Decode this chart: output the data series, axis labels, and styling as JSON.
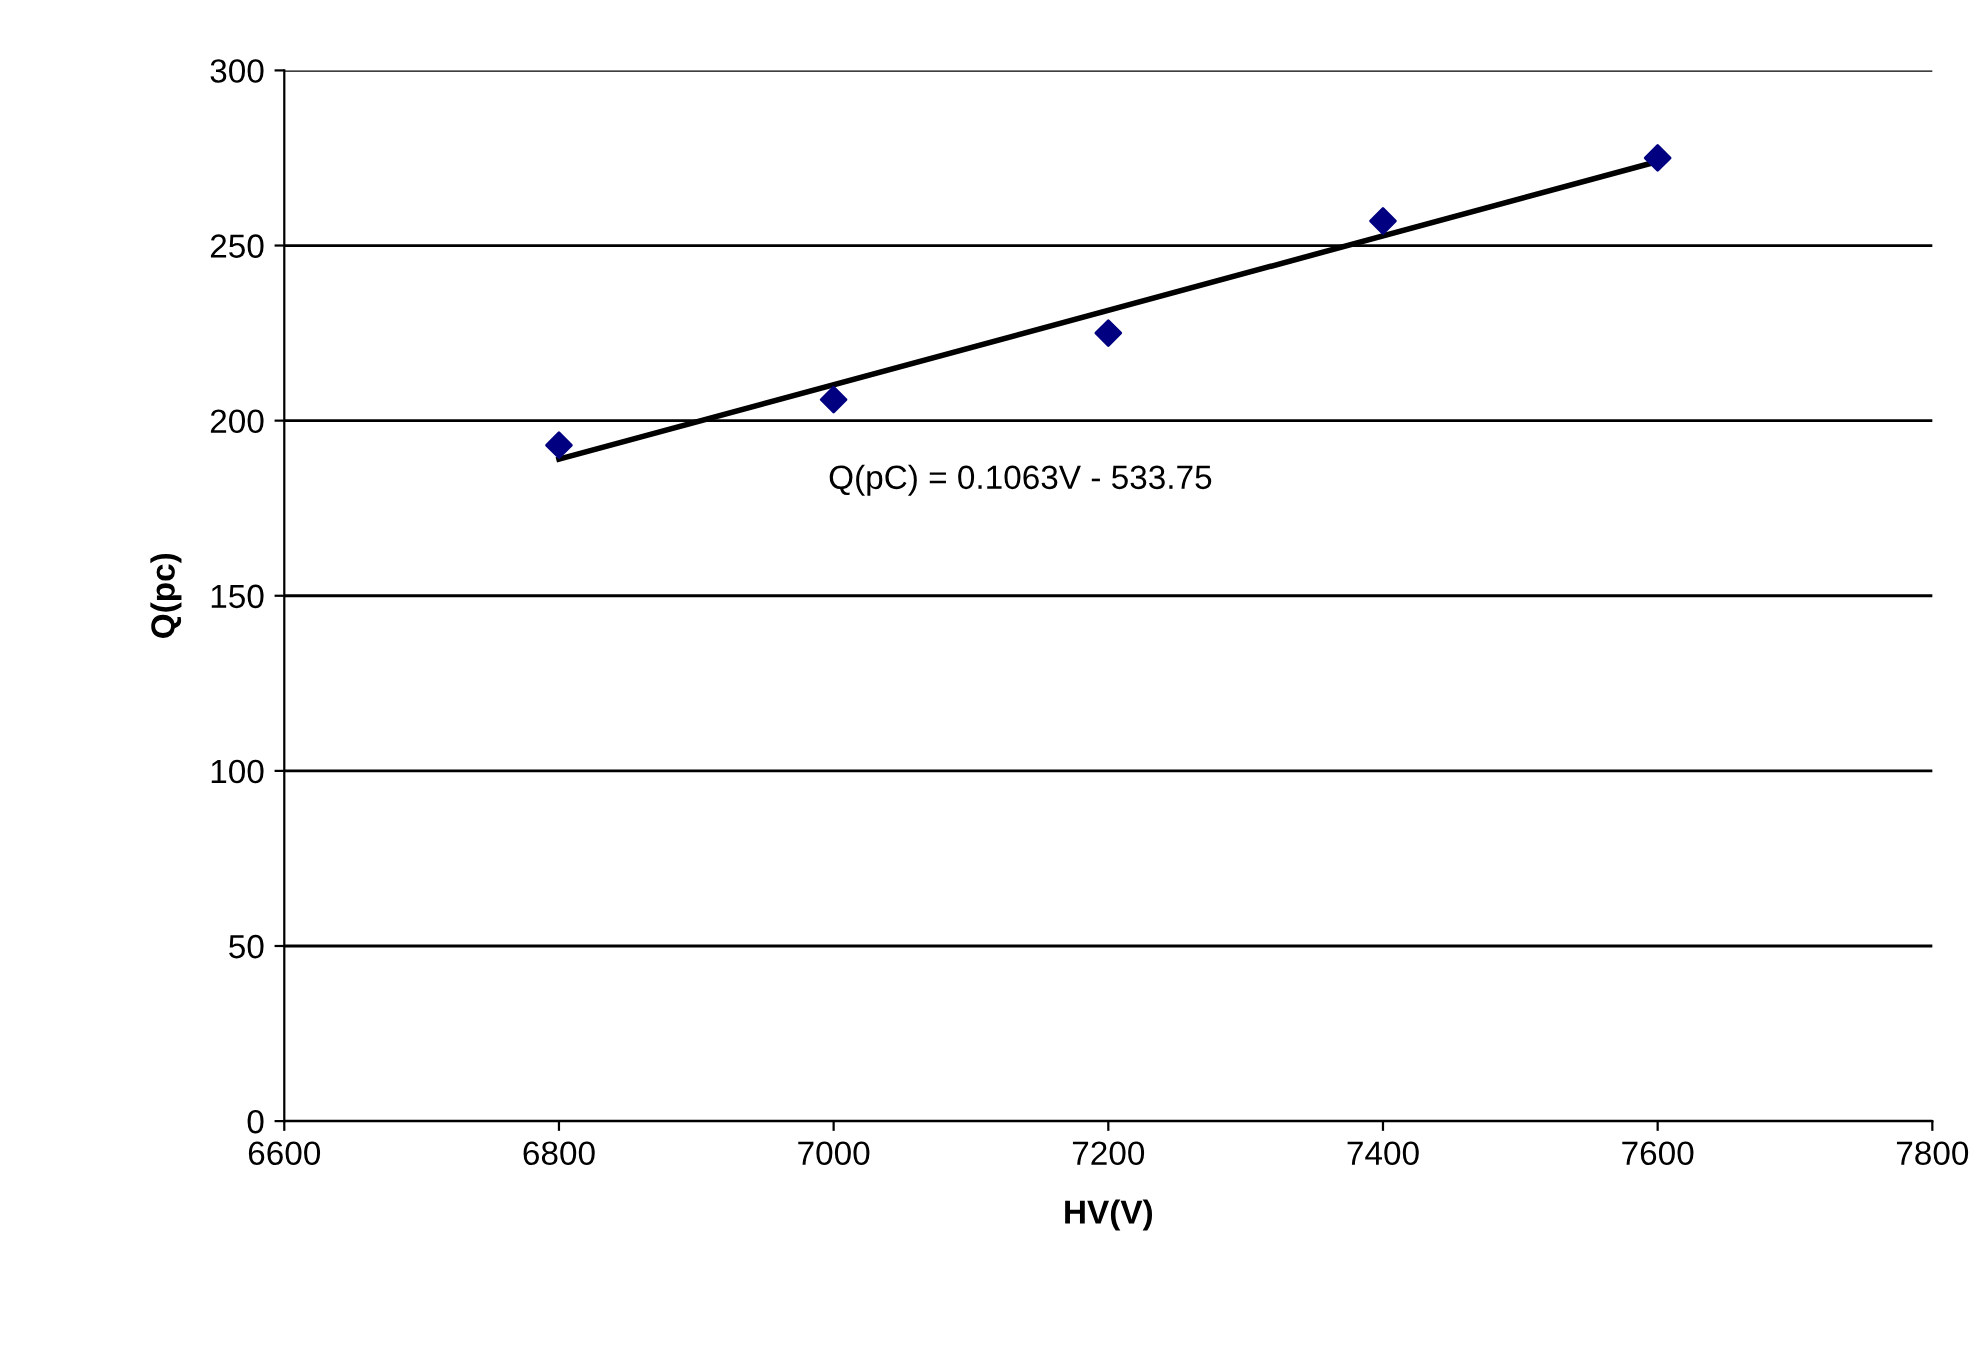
{
  "chart_data": {
    "type": "scatter",
    "xlabel": "HV(V)",
    "ylabel": "Q(pc)",
    "annotations": [
      "Q(pC) = 0.1063V - 533.75"
    ],
    "series": [
      {
        "color": "#000080",
        "marker": "diamond",
        "x": [
          6800,
          7000,
          7200,
          7400,
          7600
        ],
        "values": [
          193,
          206,
          225,
          257,
          275
        ]
      },
      {
        "type": "line",
        "color": "#000000",
        "marker": "none",
        "x": [
          6800,
          7600
        ],
        "values": [
          189,
          274
        ]
      }
    ],
    "xlim": [
      6600,
      7800
    ],
    "xticks": [
      6600,
      6800,
      7000,
      7200,
      7400,
      7600,
      7800
    ],
    "ylim": [
      0,
      300
    ],
    "yticks": [
      0,
      50,
      100,
      150,
      200,
      250,
      300
    ],
    "grid": "y",
    "legend": false
  }
}
